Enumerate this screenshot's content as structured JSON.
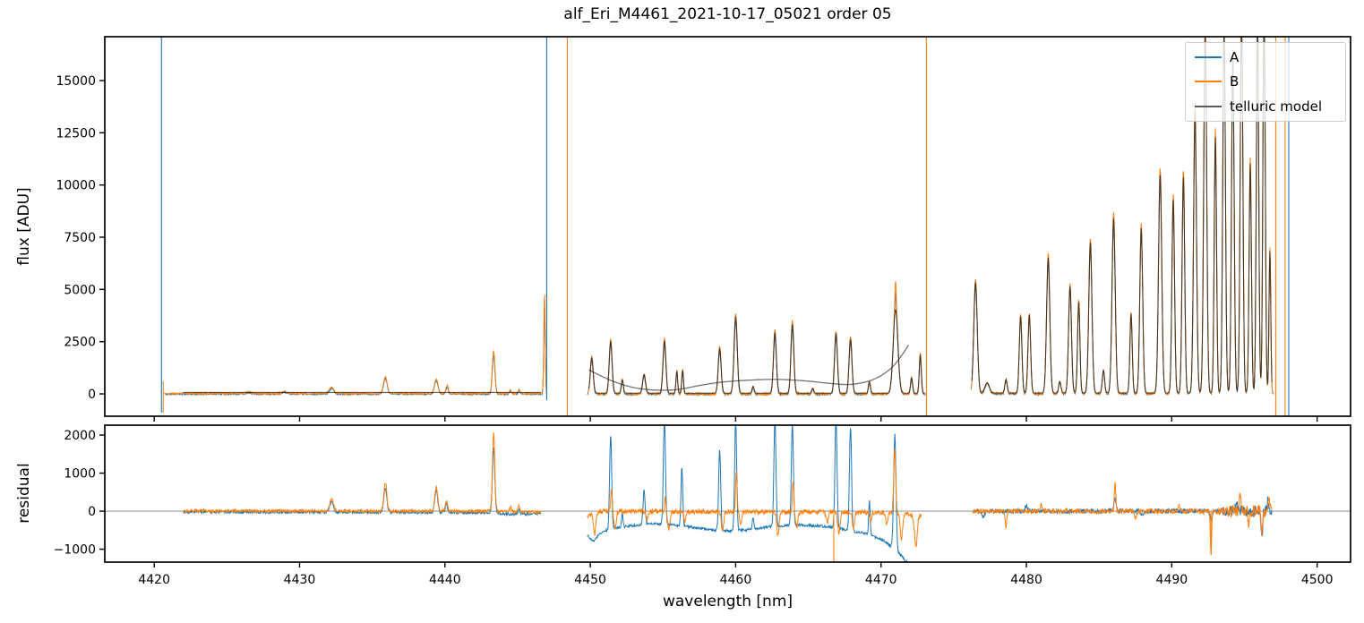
{
  "title": "alf_Eri_M4461_2021-10-17_05021  order 05",
  "legend": {
    "entries": [
      {
        "label": "A",
        "color": "#1f77b4"
      },
      {
        "label": "B",
        "color": "#ff7f0e"
      },
      {
        "label": "telluric model",
        "color": "#595959"
      }
    ]
  },
  "chart_data": {
    "type": "line",
    "title": "alf_Eri_M4461_2021-10-17_05021  order 05",
    "xlabel": "wavelength [nm]",
    "xlim": [
      4416.6,
      4502.3
    ],
    "xticks": [
      4420,
      4430,
      4440,
      4450,
      4460,
      4470,
      4480,
      4490,
      4500
    ],
    "grid": false,
    "legend_position": "upper right",
    "panels": [
      {
        "id": "flux",
        "ylabel": "flux [ADU]",
        "ylim": [
          -1070,
          17100
        ],
        "yticks": [
          0,
          2500,
          5000,
          7500,
          10000,
          12500,
          15000
        ],
        "zero_line": false
      },
      {
        "id": "residual",
        "ylabel": "residual",
        "ylim": [
          -1340,
          2260
        ],
        "yticks": [
          -1000,
          0,
          1000,
          2000
        ],
        "zero_line": true
      }
    ],
    "series": [
      {
        "key": "A",
        "name": "A",
        "color": "#1f77b4"
      },
      {
        "key": "B",
        "name": "B",
        "color": "#ff7f0e"
      },
      {
        "key": "M",
        "name": "telluric model",
        "color": "rgba(25,25,25,0.78)"
      }
    ],
    "flux_regions": [
      {
        "x0": 4420.7,
        "x1": 4447.05,
        "step": 0.03,
        "peaks": [
          [
            4426.5,
            70,
            0.2
          ],
          [
            4429.0,
            90,
            0.2
          ],
          [
            4432.2,
            300,
            0.15
          ],
          [
            4435.9,
            830,
            0.12
          ],
          [
            4439.4,
            700,
            0.12
          ],
          [
            4440.15,
            380,
            0.08
          ],
          [
            4443.35,
            2050,
            0.09
          ],
          [
            4444.5,
            160,
            0.06
          ],
          [
            4445.1,
            200,
            0.06
          ],
          [
            4446.85,
            4800,
            0.05
          ]
        ],
        "series": {
          "A": {
            "mult": 0.9,
            "noise": 38,
            "base": -10
          },
          "B": {
            "mult": 1.0,
            "noise": 42,
            "base": 15
          },
          "M": {
            "mult": 0,
            "noise": 0,
            "base": 70,
            "x0": 4422.0,
            "x1": 4446.6
          }
        }
      },
      {
        "x0": 4449.8,
        "x1": 4473.05,
        "step": 0.03,
        "peaks": [
          [
            4450.1,
            1700,
            0.1
          ],
          [
            4451.4,
            2500,
            0.1
          ],
          [
            4452.2,
            650,
            0.07
          ],
          [
            4453.7,
            900,
            0.1
          ],
          [
            4455.1,
            2500,
            0.1
          ],
          [
            4455.95,
            1050,
            0.06
          ],
          [
            4456.35,
            1100,
            0.06
          ],
          [
            4458.9,
            2150,
            0.1
          ],
          [
            4460.0,
            3650,
            0.11
          ],
          [
            4461.2,
            330,
            0.07
          ],
          [
            4462.7,
            2900,
            0.1
          ],
          [
            4463.9,
            3300,
            0.1
          ],
          [
            4465.3,
            240,
            0.07
          ],
          [
            4466.9,
            2850,
            0.1
          ],
          [
            4467.9,
            2600,
            0.1
          ],
          [
            4469.2,
            550,
            0.07
          ],
          [
            4471.0,
            4000,
            0.16
          ],
          [
            4471.0,
            1100,
            0.05,
            0
          ],
          [
            4472.1,
            750,
            0.07
          ],
          [
            4472.7,
            1850,
            0.07
          ]
        ],
        "series": {
          "A": {
            "mult": 0.96,
            "noise": 40,
            "base": -20
          },
          "B": {
            "mult": 1.06,
            "noise": 55,
            "base": 0
          },
          "M": {
            "mult": 1.0,
            "noise": 0,
            "base": 30,
            "x0": 4449.9,
            "x1": 4473.0
          }
        }
      },
      {
        "x0": 4476.2,
        "x1": 4497.0,
        "step": 0.028,
        "peaks": [
          [
            4476.5,
            5300,
            0.12
          ],
          [
            4477.3,
            500,
            0.15
          ],
          [
            4478.6,
            650,
            0.08
          ],
          [
            4479.6,
            3700,
            0.09
          ],
          [
            4480.2,
            3750,
            0.09
          ],
          [
            4481.5,
            6500,
            0.11
          ],
          [
            4482.3,
            550,
            0.08
          ],
          [
            4483.0,
            5100,
            0.1
          ],
          [
            4483.6,
            4400,
            0.08
          ],
          [
            4484.4,
            7200,
            0.11
          ],
          [
            4485.3,
            1100,
            0.08
          ],
          [
            4486.0,
            8400,
            0.11
          ],
          [
            4487.2,
            3800,
            0.08
          ],
          [
            4487.9,
            7900,
            0.1
          ],
          [
            4489.2,
            10500,
            0.11
          ],
          [
            4490.1,
            9300,
            0.09
          ],
          [
            4490.8,
            10400,
            0.09
          ],
          [
            4491.6,
            13500,
            0.1
          ],
          [
            4492.3,
            17600,
            0.1
          ],
          [
            4493.0,
            12300,
            0.08
          ],
          [
            4493.6,
            17600,
            0.09
          ],
          [
            4494.2,
            16000,
            0.09
          ],
          [
            4494.8,
            18400,
            0.09
          ],
          [
            4495.4,
            11000,
            0.08
          ],
          [
            4495.9,
            18400,
            0.08
          ],
          [
            4496.35,
            18800,
            0.08
          ],
          [
            4496.75,
            6800,
            0.06
          ]
        ],
        "series": {
          "A": {
            "mult": 0.97,
            "noise": 45,
            "base": 0
          },
          "B": {
            "mult": 1.03,
            "noise": 55,
            "base": 20
          },
          "M": {
            "mult": 1.0,
            "noise": 0,
            "base": 40,
            "x0": 4476.25,
            "x1": 4496.9
          }
        }
      }
    ],
    "flux_continuum_curve": {
      "color": "rgba(40,40,40,0.65)",
      "points": [
        [
          4449.9,
          1150
        ],
        [
          4451.5,
          620
        ],
        [
          4453.0,
          300
        ],
        [
          4454.5,
          180
        ],
        [
          4456.0,
          210
        ],
        [
          4457.5,
          400
        ],
        [
          4459.0,
          560
        ],
        [
          4461.0,
          660
        ],
        [
          4463.0,
          690
        ],
        [
          4465.0,
          610
        ],
        [
          4466.5,
          500
        ],
        [
          4468.0,
          460
        ],
        [
          4469.5,
          700
        ],
        [
          4470.8,
          1300
        ],
        [
          4471.9,
          2330
        ]
      ]
    },
    "flux_vlines": [
      {
        "x": 4420.5,
        "y0": -900,
        "y1": 17100,
        "series": "A"
      },
      {
        "x": 4420.62,
        "y0": -900,
        "y1": 600,
        "series": "B"
      },
      {
        "x": 4447.0,
        "y0": -300,
        "y1": 17100,
        "series": "A"
      },
      {
        "x": 4448.42,
        "y0": -1070,
        "y1": 17100,
        "series": "B"
      },
      {
        "x": 4473.12,
        "y0": -1070,
        "y1": 17100,
        "series": "B"
      },
      {
        "x": 4497.15,
        "y0": -1070,
        "y1": 17100,
        "series": "B"
      },
      {
        "x": 4497.8,
        "y0": -1070,
        "y1": 17100,
        "series": "B"
      },
      {
        "x": 4498.05,
        "y0": -1070,
        "y1": 17100,
        "series": "A"
      }
    ],
    "residual_vlines": [
      {
        "x": 4466.75,
        "y0": -1340,
        "y1": 0,
        "series": "B"
      },
      {
        "x": 4492.7,
        "y0": -1150,
        "y1": 0,
        "series": "B"
      }
    ],
    "residual_regions": {
      "A": [
        {
          "x0": 4422.0,
          "x1": 4446.6,
          "step": 0.03,
          "noise": 35,
          "base_pts": [
            [
              4422,
              -20
            ],
            [
              4436,
              -30
            ],
            [
              4443,
              -40
            ],
            [
              4444.5,
              -80
            ],
            [
              4446.6,
              -70
            ]
          ],
          "peaks": [
            [
              4432.2,
              280,
              0.12
            ],
            [
              4435.9,
              640,
              0.1
            ],
            [
              4439.4,
              580,
              0.1
            ],
            [
              4440.1,
              260,
              0.07
            ],
            [
              4443.35,
              1750,
              0.08
            ],
            [
              4445.1,
              120,
              0.06
            ]
          ]
        },
        {
          "x0": 4449.8,
          "x1": 4471.9,
          "step": 0.03,
          "noise": 35,
          "base_pts": [
            [
              4449.8,
              -650
            ],
            [
              4450.2,
              -780
            ],
            [
              4450.9,
              -520
            ],
            [
              4452.0,
              -430
            ],
            [
              4453.5,
              -350
            ],
            [
              4455.0,
              -330
            ],
            [
              4456.5,
              -400
            ],
            [
              4458.0,
              -480
            ],
            [
              4459.5,
              -520
            ],
            [
              4461.0,
              -480
            ],
            [
              4462.5,
              -400
            ],
            [
              4464.0,
              -360
            ],
            [
              4465.5,
              -380
            ],
            [
              4466.8,
              -430
            ],
            [
              4468.0,
              -520
            ],
            [
              4469.2,
              -620
            ],
            [
              4470.2,
              -780
            ],
            [
              4471.0,
              -1000
            ],
            [
              4471.9,
              -1400
            ]
          ],
          "peaks": [
            [
              4451.4,
              2500,
              0.07
            ],
            [
              4452.2,
              350,
              0.05
            ],
            [
              4453.7,
              900,
              0.07
            ],
            [
              4455.1,
              2900,
              0.07
            ],
            [
              4456.3,
              1550,
              0.06
            ],
            [
              4458.9,
              2100,
              0.07
            ],
            [
              4460.0,
              2900,
              0.07
            ],
            [
              4461.2,
              300,
              0.05
            ],
            [
              4462.7,
              2900,
              0.07
            ],
            [
              4463.9,
              2700,
              0.07
            ],
            [
              4466.9,
              2900,
              0.07
            ],
            [
              4467.9,
              2750,
              0.07
            ],
            [
              4469.2,
              900,
              0.05
            ],
            [
              4470.95,
              3000,
              0.08
            ]
          ]
        },
        {
          "x0": 4476.3,
          "x1": 4496.9,
          "step": 0.028,
          "base": 0,
          "noise_pts": [
            [
              4476.3,
              55
            ],
            [
              4493,
              65
            ],
            [
              4494,
              140
            ],
            [
              4497,
              150
            ]
          ],
          "peaks": [
            [
              4477.0,
              -150,
              0.1
            ],
            [
              4480.0,
              120,
              0.1
            ],
            [
              4486.1,
              300,
              0.08
            ],
            [
              4488.0,
              -120,
              0.1
            ],
            [
              4492.7,
              -250,
              0.06
            ],
            [
              4494.5,
              200,
              0.1
            ],
            [
              4496.2,
              -650,
              0.06
            ],
            [
              4496.6,
              250,
              0.05
            ]
          ]
        }
      ],
      "B": [
        {
          "x0": 4422.0,
          "x1": 4446.6,
          "step": 0.03,
          "noise": 40,
          "base_pts": [
            [
              4422,
              10
            ],
            [
              4443,
              0
            ],
            [
              4446.6,
              -30
            ]
          ],
          "peaks": [
            [
              4432.2,
              320,
              0.12
            ],
            [
              4435.9,
              760,
              0.1
            ],
            [
              4439.4,
              640,
              0.1
            ],
            [
              4440.1,
              300,
              0.07
            ],
            [
              4443.35,
              2060,
              0.08
            ],
            [
              4444.5,
              140,
              0.06
            ],
            [
              4445.1,
              170,
              0.06
            ]
          ]
        },
        {
          "x0": 4449.8,
          "x1": 4472.8,
          "step": 0.03,
          "noise": 65,
          "base_pts": [
            [
              4449.8,
              -120
            ],
            [
              4450.5,
              -10
            ],
            [
              4452,
              0
            ],
            [
              4460,
              -20
            ],
            [
              4470,
              -30
            ],
            [
              4472.8,
              -130
            ]
          ],
          "peaks": [
            [
              4450.3,
              -550,
              0.08
            ],
            [
              4451.45,
              600,
              0.05
            ],
            [
              4451.7,
              -450,
              0.08
            ],
            [
              4453.9,
              -200,
              0.08
            ],
            [
              4455.15,
              420,
              0.04
            ],
            [
              4455.4,
              -470,
              0.08
            ],
            [
              4456.5,
              -300,
              0.06
            ],
            [
              4459.1,
              -520,
              0.08
            ],
            [
              4460.05,
              1100,
              0.05
            ],
            [
              4460.35,
              -300,
              0.07
            ],
            [
              4462.9,
              -600,
              0.08
            ],
            [
              4463.95,
              850,
              0.05
            ],
            [
              4464.2,
              -420,
              0.08
            ],
            [
              4466.3,
              -300,
              0.07
            ],
            [
              4467.1,
              -550,
              0.08
            ],
            [
              4468.1,
              -420,
              0.07
            ],
            [
              4469.3,
              -250,
              0.06
            ],
            [
              4470.4,
              -300,
              0.07
            ],
            [
              4470.95,
              1650,
              0.07
            ],
            [
              4471.4,
              -700,
              0.08
            ],
            [
              4472.4,
              -820,
              0.09
            ]
          ]
        },
        {
          "x0": 4476.3,
          "x1": 4496.9,
          "step": 0.028,
          "base": 0,
          "noise_pts": [
            [
              4476.3,
              60
            ],
            [
              4493,
              70
            ],
            [
              4494,
              160
            ],
            [
              4497,
              170
            ]
          ],
          "peaks": [
            [
              4478.6,
              -430,
              0.05
            ],
            [
              4481.0,
              150,
              0.08
            ],
            [
              4486.1,
              750,
              0.05
            ],
            [
              4487.5,
              -160,
              0.07
            ],
            [
              4490.5,
              130,
              0.07
            ],
            [
              4492.7,
              -1150,
              0.045
            ],
            [
              4494.7,
              430,
              0.06
            ],
            [
              4495.3,
              -380,
              0.05
            ],
            [
              4496.2,
              -600,
              0.05
            ],
            [
              4496.7,
              350,
              0.05
            ]
          ]
        }
      ]
    }
  }
}
